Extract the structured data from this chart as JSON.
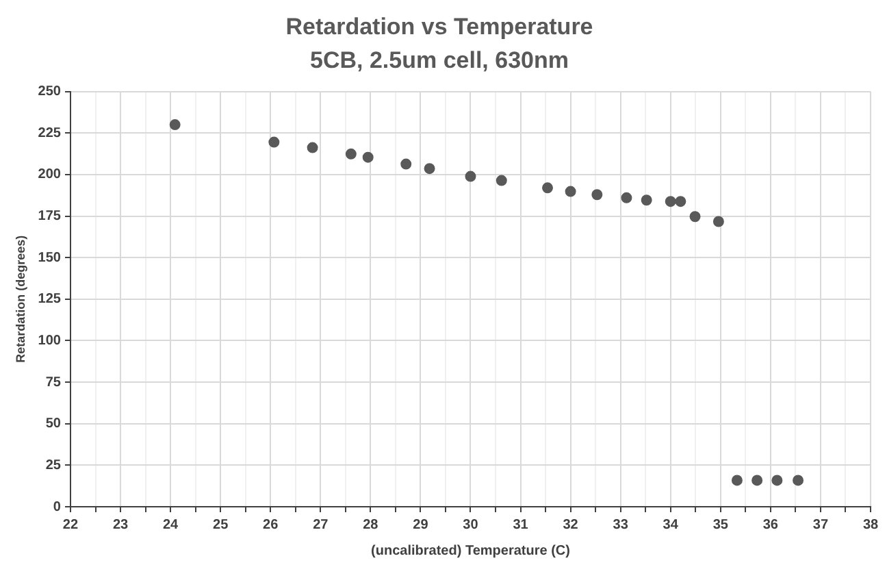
{
  "chart_data": {
    "type": "scatter",
    "title": "Retardation vs Temperature",
    "subtitle": "5CB, 2.5um cell, 630nm",
    "xlabel": "(uncalibrated) Temperature (C)",
    "ylabel": "Retardation (degrees)",
    "x": [
      24.09,
      26.07,
      26.84,
      27.61,
      27.95,
      28.71,
      29.18,
      30.0,
      30.62,
      31.54,
      32.0,
      32.53,
      33.12,
      33.52,
      34.0,
      34.2,
      34.49,
      34.96,
      35.33,
      35.73,
      36.13,
      36.55
    ],
    "series": [
      {
        "color": "#595959",
        "values": [
          230,
          219.5,
          216.2,
          212.4,
          210.4,
          206.3,
          203.6,
          198.9,
          196.4,
          192.0,
          189.8,
          187.9,
          186.0,
          184.6,
          183.8,
          183.8,
          174.7,
          171.7,
          15.9,
          15.9,
          15.9,
          15.9
        ]
      }
    ],
    "xlim": [
      22,
      38
    ],
    "xticks": [
      22,
      {
        "value": 22.5,
        "label": null
      },
      23,
      {
        "value": 23.5,
        "label": null
      },
      24,
      {
        "value": 24.5,
        "label": null
      },
      25,
      {
        "value": 25.5,
        "label": null
      },
      26,
      {
        "value": 26.5,
        "label": null
      },
      27,
      {
        "value": 27.5,
        "label": null
      },
      28,
      {
        "value": 28.5,
        "label": null
      },
      29,
      {
        "value": 29.5,
        "label": null
      },
      30,
      {
        "value": 30.5,
        "label": null
      },
      31,
      {
        "value": 31.5,
        "label": null
      },
      32,
      {
        "value": 32.5,
        "label": null
      },
      33,
      {
        "value": 33.5,
        "label": null
      },
      34,
      {
        "value": 34.5,
        "label": null
      },
      35,
      {
        "value": 35.5,
        "label": null
      },
      36,
      {
        "value": 36.5,
        "label": null
      },
      37,
      {
        "value": 37.5,
        "label": null
      },
      38
    ],
    "ylim": [
      0,
      250
    ],
    "yticks": [
      0,
      25,
      50,
      75,
      100,
      125,
      150,
      175,
      200,
      225,
      250
    ],
    "grid": true,
    "legend": false,
    "marker": "circle"
  }
}
